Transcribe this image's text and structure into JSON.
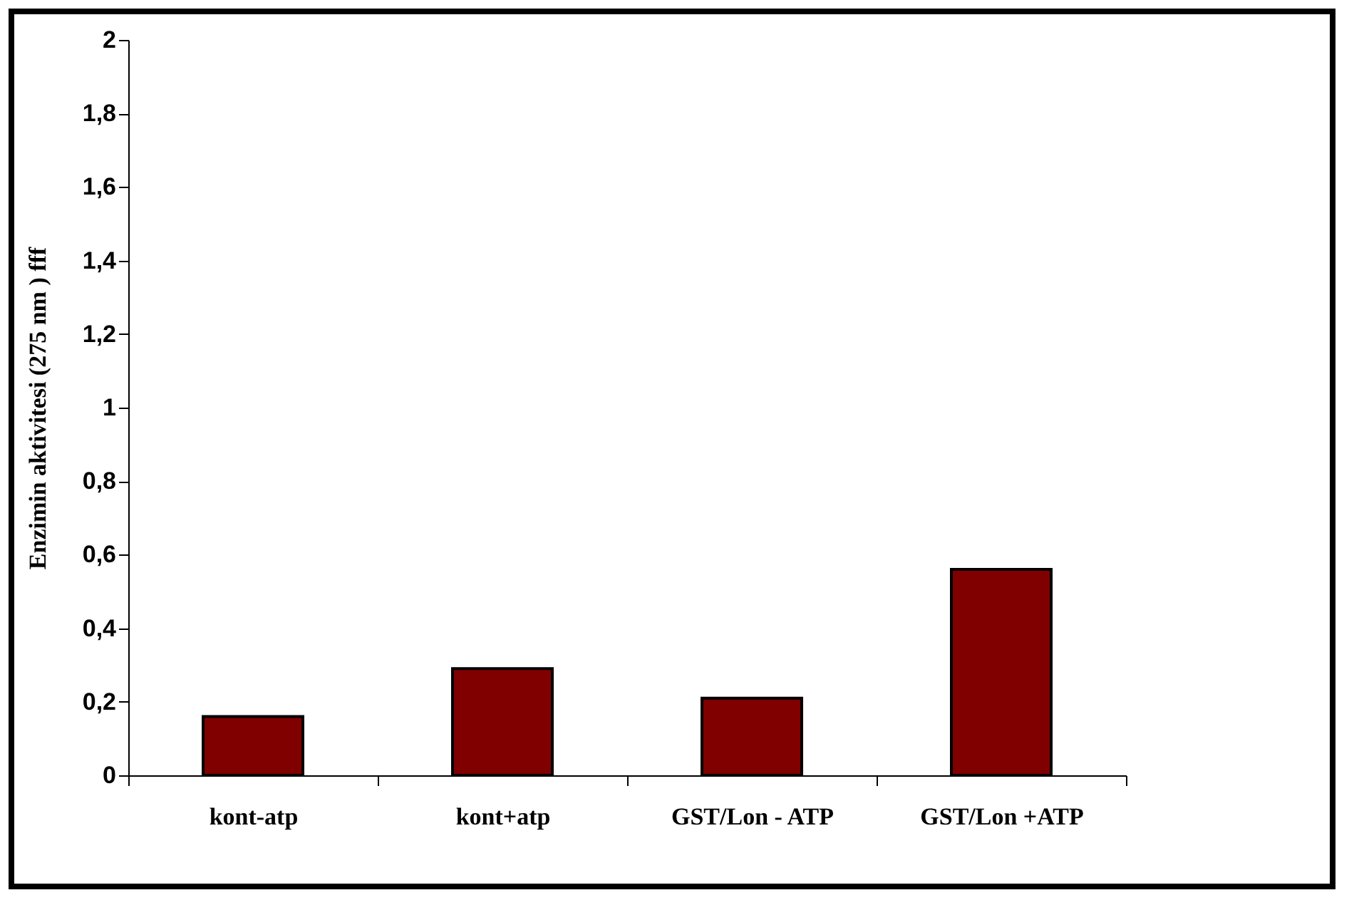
{
  "chart_data": {
    "type": "bar",
    "ylabel": "Enzimin aktivitesi  (275 nm )      fff",
    "categories": [
      "kont-atp",
      "kont+atp",
      "GST/Lon - ATP",
      "GST/Lon +ATP"
    ],
    "values": [
      0.16,
      0.29,
      0.21,
      0.56
    ],
    "color": "#800000",
    "ylim": [
      0,
      2
    ],
    "yticks": [
      0,
      {
        "value": 0.2,
        "label": "0,2"
      },
      {
        "value": 0.4,
        "label": "0,4"
      },
      {
        "value": 0.6,
        "label": "0,6"
      },
      {
        "value": 0.8,
        "label": "0,8"
      },
      1,
      {
        "value": 1.2,
        "label": "1,2"
      },
      {
        "value": 1.4,
        "label": "1,4"
      },
      {
        "value": 1.6,
        "label": "1,6"
      },
      {
        "value": 1.8,
        "label": "1,8"
      },
      2
    ],
    "grid": false
  }
}
